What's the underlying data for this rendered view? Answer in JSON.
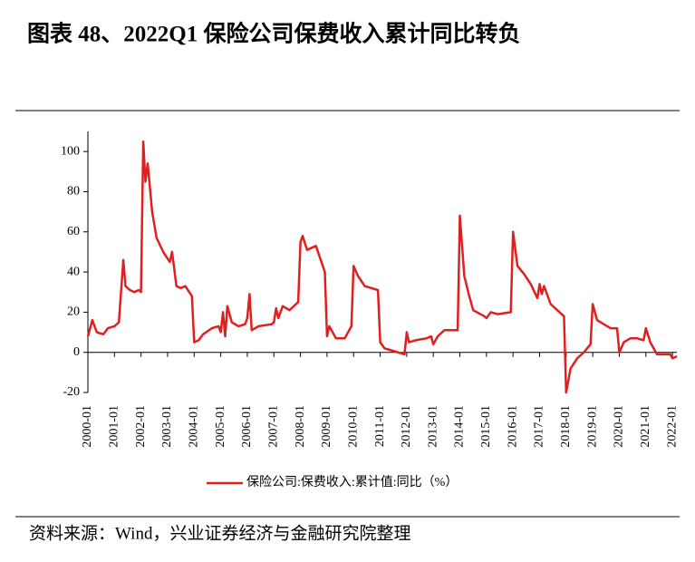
{
  "chart_data": {
    "type": "line",
    "title": "图表 48、2022Q1 保险公司保费收入累计同比转负",
    "source": "资料来源：Wind，兴业证券经济与金融研究院整理",
    "x": [
      "2000-01",
      "2000-03",
      "2000-05",
      "2000-08",
      "2000-10",
      "2001-01",
      "2001-03",
      "2001-05",
      "2001-06",
      "2001-08",
      "2001-10",
      "2001-12",
      "2002-01",
      "2002-02",
      "2002-03",
      "2002-04",
      "2002-06",
      "2002-08",
      "2002-11",
      "2003-02",
      "2003-03",
      "2003-05",
      "2003-07",
      "2003-09",
      "2003-12",
      "2004-01",
      "2004-03",
      "2004-05",
      "2004-09",
      "2004-12",
      "2005-01",
      "2005-02",
      "2005-03",
      "2005-04",
      "2005-06",
      "2005-09",
      "2005-12",
      "2006-01",
      "2006-02",
      "2006-03",
      "2006-06",
      "2006-12",
      "2007-01",
      "2007-02",
      "2007-03",
      "2007-05",
      "2007-08",
      "2007-11",
      "2007-12",
      "2008-01",
      "2008-02",
      "2008-04",
      "2008-08",
      "2008-12",
      "2009-01",
      "2009-02",
      "2009-05",
      "2009-09",
      "2009-12",
      "2010-01",
      "2010-03",
      "2010-06",
      "2010-09",
      "2010-12",
      "2011-01",
      "2011-03",
      "2011-06",
      "2011-09",
      "2011-12",
      "2012-01",
      "2012-02",
      "2012-05",
      "2012-10",
      "2012-12",
      "2013-01",
      "2013-03",
      "2013-06",
      "2013-09",
      "2013-12",
      "2014-01",
      "2014-03",
      "2014-05",
      "2014-07",
      "2014-12",
      "2015-01",
      "2015-03",
      "2015-06",
      "2015-12",
      "2016-01",
      "2016-03",
      "2016-06",
      "2016-09",
      "2016-12",
      "2017-01",
      "2017-02",
      "2017-03",
      "2017-06",
      "2017-09",
      "2017-12",
      "2018-01",
      "2018-03",
      "2018-06",
      "2018-09",
      "2018-12",
      "2019-01",
      "2019-03",
      "2019-06",
      "2019-09",
      "2019-12",
      "2020-01",
      "2020-03",
      "2020-06",
      "2020-09",
      "2020-12",
      "2021-01",
      "2021-03",
      "2021-06",
      "2021-09",
      "2021-12",
      "2022-01",
      "2022-03"
    ],
    "series": [
      {
        "name": "保险公司:保费收入:累计值:同比（%）",
        "color": "#e02020",
        "values": [
          8,
          16,
          10,
          9,
          12,
          13,
          15,
          46,
          33,
          31,
          30,
          31,
          30,
          105,
          85,
          94,
          70,
          57,
          50,
          45,
          50,
          33,
          32,
          33,
          28,
          5,
          6,
          9,
          12,
          13,
          10,
          20,
          8,
          23,
          15,
          13,
          14,
          17,
          29,
          11,
          13,
          14,
          15,
          22,
          17,
          23,
          21,
          24,
          25,
          55,
          58,
          51,
          53,
          40,
          8,
          13,
          7,
          7,
          13,
          43,
          38,
          33,
          32,
          31,
          5,
          2,
          1,
          0,
          -1,
          10,
          5,
          6,
          7,
          8,
          4,
          8,
          11,
          11,
          11,
          68,
          38,
          29,
          21,
          18,
          17,
          20,
          19,
          20,
          60,
          43,
          39,
          34,
          27,
          34,
          29,
          33,
          24,
          21,
          18,
          -20,
          -8,
          -3,
          0,
          4,
          24,
          16,
          14,
          12,
          12,
          0,
          5,
          7,
          7,
          6,
          12,
          5,
          -1,
          -1,
          -1,
          -3,
          -2
        ]
      }
    ],
    "xlim": [
      "2000-01",
      "2022-03"
    ],
    "xticks": [
      "2000-01",
      "2001-01",
      "2002-01",
      "2003-01",
      "2004-01",
      "2005-01",
      "2006-01",
      "2007-01",
      "2008-01",
      "2009-01",
      "2010-01",
      "2011-01",
      "2012-01",
      "2013-01",
      "2014-01",
      "2015-01",
      "2016-01",
      "2017-01",
      "2018-01",
      "2019-01",
      "2020-01",
      "2021-01",
      "2022-01"
    ],
    "ylim": [
      -20,
      110
    ],
    "yticks": [
      -20,
      0,
      20,
      40,
      60,
      80,
      100
    ],
    "legend": "bottom"
  }
}
